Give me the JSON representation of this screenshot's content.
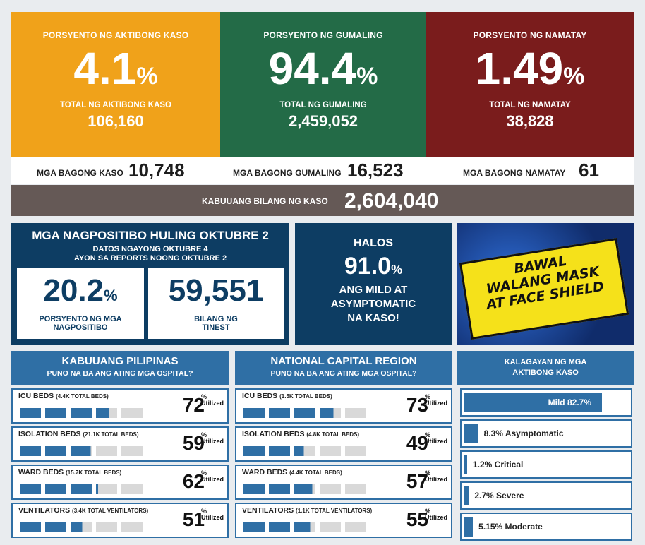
{
  "top": [
    {
      "label": "PORSYENTO NG AKTIBONG KASO",
      "pct": "4.1",
      "sym": "%",
      "sub": "TOTAL NG AKTIBONG KASO",
      "num": "106,160",
      "color": "#f0a21a"
    },
    {
      "label": "PORSYENTO NG GUMALING",
      "pct": "94.4",
      "sym": "%",
      "sub": "TOTAL NG GUMALING",
      "num": "2,459,052",
      "color": "#236b47"
    },
    {
      "label": "PORSYENTO NG NAMATAY",
      "pct": "1.49",
      "sym": "%",
      "sub": "TOTAL NG NAMATAY",
      "num": "38,828",
      "color": "#7a1c1c"
    }
  ],
  "new": {
    "kaso_label": "MGA BAGONG KASO",
    "kaso": "10,748",
    "gumaling_label": "MGA BAGONG GUMALING",
    "gumaling": "16,523",
    "namatay_label": "MGA BAGONG NAMATAY",
    "namatay": "61"
  },
  "total": {
    "label": "KABUUANG BILANG NG KASO",
    "value": "2,604,040"
  },
  "positivity": {
    "title": "MGA NAGPOSITIBO HULING OKTUBRE 2",
    "line1": "DATOS NGAYONG OKTUBRE 4",
    "line2": "AYON SA REPORTS NOONG OKTUBRE 2",
    "pct": "20.2",
    "sym": "%",
    "pct_label1": "PORSYENTO NG MGA",
    "pct_label2": "NAGPOSITIBO",
    "tested": "59,551",
    "tested_label1": "BILANG NG",
    "tested_label2": "TINEST"
  },
  "mild": {
    "l1": "HALOS",
    "pct": "91.0",
    "sym": "%",
    "l2": "ANG MILD AT",
    "l3": "ASYMPTOMATIC",
    "l4": "NA KASO!"
  },
  "banner": {
    "l1": "BAWAL",
    "l2": "WALANG MASK",
    "l3": "AT FACE SHIELD"
  },
  "ph": {
    "title": "KABUUANG PILIPINAS",
    "subtitle": "PUNO NA BA ANG ATING MGA OSPITAL?",
    "rows": [
      {
        "name": "ICU BEDS",
        "note": "(4.4K TOTAL BEDS)",
        "pct": "72",
        "filled": 3.6,
        "sym": "%",
        "u": "Utilized"
      },
      {
        "name": "ISOLATION BEDS",
        "note": "(21.1K TOTAL BEDS)",
        "pct": "59",
        "filled": 2.95,
        "sym": "%",
        "u": "Utilized"
      },
      {
        "name": "WARD BEDS",
        "note": "(15.7K TOTAL BEDS)",
        "pct": "62",
        "filled": 3.1,
        "sym": "%",
        "u": "Utilized"
      },
      {
        "name": "VENTILATORS",
        "note": "(3.4K TOTAL VENTILATORS)",
        "pct": "51",
        "filled": 2.55,
        "sym": "%",
        "u": "Utilized"
      }
    ]
  },
  "ncr": {
    "title": "NATIONAL CAPITAL REGION",
    "subtitle": "PUNO NA BA ANG ATING MGA OSPITAL?",
    "rows": [
      {
        "name": "ICU BEDS",
        "note": "(1.5K TOTAL BEDS)",
        "pct": "73",
        "filled": 3.65,
        "sym": "%",
        "u": "Utilized"
      },
      {
        "name": "ISOLATION BEDS",
        "note": "(4.8K TOTAL BEDS)",
        "pct": "49",
        "filled": 2.45,
        "sym": "%",
        "u": "Utilized"
      },
      {
        "name": "WARD BEDS",
        "note": "(4.4K TOTAL BEDS)",
        "pct": "57",
        "filled": 2.85,
        "sym": "%",
        "u": "Utilized"
      },
      {
        "name": "VENTILATORS",
        "note": "(1.1K TOTAL VENTILATORS)",
        "pct": "55",
        "filled": 2.75,
        "sym": "%",
        "u": "Utilized"
      }
    ]
  },
  "kalagayan": {
    "title1": "KALAGAYAN NG MGA",
    "title2": "AKTIBONG KASO",
    "items": [
      {
        "text": "Mild 82.7%",
        "value": 0.827
      },
      {
        "text": "8.3% Asymptomatic",
        "value": 0.083
      },
      {
        "text": "1.2% Critical",
        "value": 0.012
      },
      {
        "text": "2.7% Severe",
        "value": 0.027
      },
      {
        "text": "5.15% Moderate",
        "value": 0.0515
      }
    ]
  }
}
